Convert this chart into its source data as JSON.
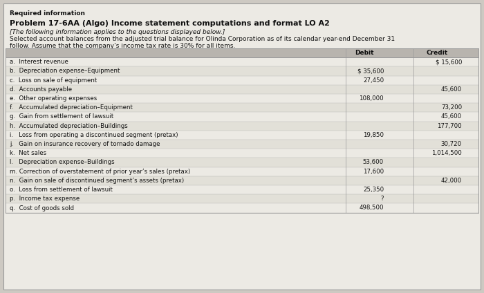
{
  "required_info": "Required information",
  "title": "Problem 17-6AA (Algo) Income statement computations and format LO A2",
  "subtitle": "[The following information applies to the questions displayed below.]",
  "description_line1": "Selected account balances from the adjusted trial balance for Olinda Corporation as of its calendar year-end December 31",
  "description_line2": "follow. Assume that the company’s income tax rate is 30% for all items.",
  "col_debit": "Debit",
  "col_credit": "Credit",
  "rows": [
    {
      "label": "a.  Interest revenue",
      "debit": "",
      "credit": "$ 15,600"
    },
    {
      "label": "b.  Depreciation expense–Equipment",
      "debit": "$ 35,600",
      "credit": ""
    },
    {
      "label": "c.  Loss on sale of equipment",
      "debit": "27,450",
      "credit": ""
    },
    {
      "label": "d.  Accounts payable",
      "debit": "",
      "credit": "45,600"
    },
    {
      "label": "e.  Other operating expenses",
      "debit": "108,000",
      "credit": ""
    },
    {
      "label": "f.   Accumulated depreciation–Equipment",
      "debit": "",
      "credit": "73,200"
    },
    {
      "label": "g.  Gain from settlement of lawsuit",
      "debit": "",
      "credit": "45,600"
    },
    {
      "label": "h.  Accumulated depreciation–Buildings",
      "debit": "",
      "credit": "177,700"
    },
    {
      "label": "i.   Loss from operating a discontinued segment (pretax)",
      "debit": "19,850",
      "credit": ""
    },
    {
      "label": "j.   Gain on insurance recovery of tornado damage",
      "debit": "",
      "credit": "30,720"
    },
    {
      "label": "k.  Net sales",
      "debit": "",
      "credit": "1,014,500"
    },
    {
      "label": "l.   Depreciation expense–Buildings",
      "debit": "53,600",
      "credit": ""
    },
    {
      "label": "m. Correction of overstatement of prior year’s sales (pretax)",
      "debit": "17,600",
      "credit": ""
    },
    {
      "label": "n.  Gain on sale of discontinued segment’s assets (pretax)",
      "debit": "",
      "credit": "42,000"
    },
    {
      "label": "o.  Loss from settlement of lawsuit",
      "debit": "25,350",
      "credit": ""
    },
    {
      "label": "p.  Income tax expense",
      "debit": "?",
      "credit": ""
    },
    {
      "label": "q.  Cost of goods sold",
      "debit": "498,500",
      "credit": ""
    }
  ],
  "bg_outer": "#cdc9c2",
  "bg_inner": "#eceae4",
  "header_row_bg": "#b8b4ae",
  "text_color": "#111111",
  "border_color": "#999999",
  "figwidth": 7.0,
  "figheight": 4.24,
  "dpi": 100
}
